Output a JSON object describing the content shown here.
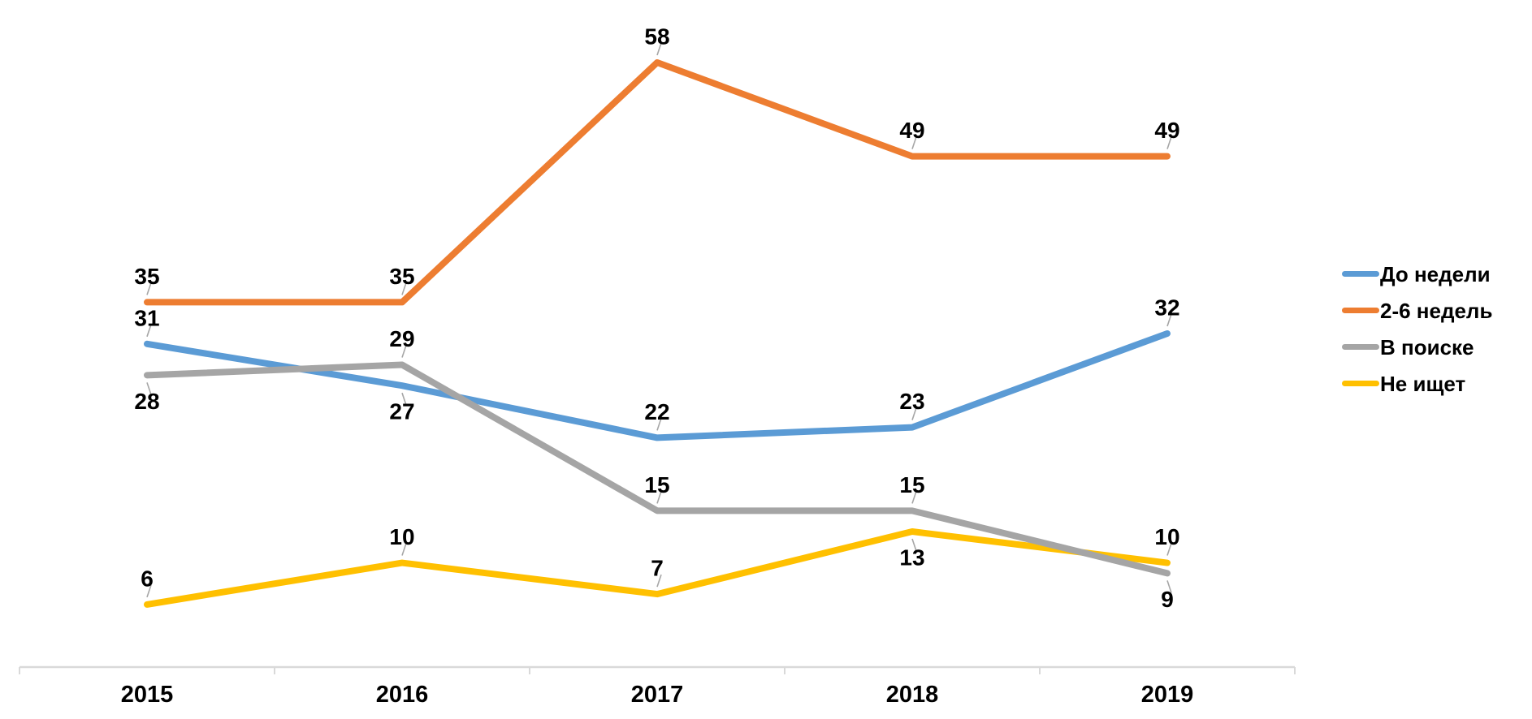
{
  "chart_data": {
    "type": "line",
    "title": "",
    "xlabel": "",
    "ylabel": "",
    "categories": [
      "2015",
      "2016",
      "2017",
      "2018",
      "2019"
    ],
    "series": [
      {
        "name": "До недели",
        "color": "#5B9BD5",
        "values": [
          31,
          27,
          22,
          23,
          32
        ],
        "label_side": [
          "above",
          "below",
          "above",
          "above",
          "above"
        ]
      },
      {
        "name": "2-6 недель",
        "color": "#ED7D31",
        "values": [
          35,
          35,
          58,
          49,
          49
        ],
        "label_side": [
          "above",
          "above",
          "above",
          "above",
          "above"
        ]
      },
      {
        "name": "В поиске",
        "color": "#A5A5A5",
        "values": [
          28,
          29,
          15,
          15,
          9
        ],
        "label_side": [
          "below",
          "above",
          "above",
          "above",
          "below"
        ]
      },
      {
        "name": "Не ищет",
        "color": "#FFC000",
        "values": [
          6,
          10,
          7,
          13,
          10
        ],
        "label_side": [
          "above",
          "above",
          "above",
          "below",
          "above"
        ]
      }
    ],
    "ylim": [
      0,
      60
    ],
    "grid": false,
    "data_labels": true,
    "legend_position": "right",
    "draw_order": [
      0,
      1,
      3,
      2
    ],
    "colors": {
      "axis": "#D9D9D9",
      "leader": "#A6A6A6",
      "label": "#000000"
    }
  }
}
